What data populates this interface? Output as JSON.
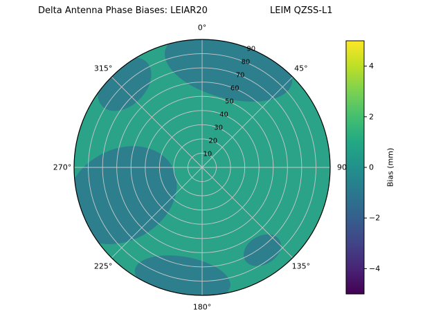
{
  "figure": {
    "title_left": "Delta Antenna Phase Biases: LEIAR20",
    "title_right": "LEIM QZSS-L1"
  },
  "chart_data": {
    "type": "heatmap",
    "projection": "polar",
    "title": "Delta Antenna Phase Biases: LEIAR20",
    "subtitle": "LEIM QZSS-L1",
    "theta_zero": "top",
    "theta_direction": "clockwise",
    "radial_max": 90,
    "radial_label_angle_deg": 22.5,
    "angular_ticks": [
      {
        "deg": 0,
        "label": "0°"
      },
      {
        "deg": 45,
        "label": "45°"
      },
      {
        "deg": 90,
        "label": "90"
      },
      {
        "deg": 135,
        "label": "135°"
      },
      {
        "deg": 180,
        "label": "180°"
      },
      {
        "deg": 225,
        "label": "225°"
      },
      {
        "deg": 270,
        "label": "270°"
      },
      {
        "deg": 315,
        "label": "315°"
      }
    ],
    "radial_ticks": [
      {
        "r": 10,
        "label": "10"
      },
      {
        "r": 20,
        "label": "20"
      },
      {
        "r": 30,
        "label": "30"
      },
      {
        "r": 40,
        "label": "40"
      },
      {
        "r": 50,
        "label": "50"
      },
      {
        "r": 60,
        "label": "60"
      },
      {
        "r": 70,
        "label": "70"
      },
      {
        "r": 80,
        "label": "80"
      },
      {
        "r": 90,
        "label": "90"
      }
    ],
    "base_bias_mm": 0.5,
    "base_color": "#2aa388",
    "region_color": "#2d7f8e",
    "regions": [
      {
        "name": "north-dark",
        "bias_mm": -0.5,
        "theta_deg": 14.7,
        "r": 73,
        "a": 46,
        "b": 22,
        "rot": 15
      },
      {
        "name": "northwest-dark",
        "bias_mm": -0.5,
        "theta_deg": 317,
        "r": 80,
        "a": 22,
        "b": 15,
        "rot": -45
      },
      {
        "name": "west-dark",
        "bias_mm": -0.5,
        "theta_deg": 251,
        "r": 60,
        "a": 41,
        "b": 32,
        "rot": -30
      },
      {
        "name": "south-dark",
        "bias_mm": -0.5,
        "theta_deg": 190,
        "r": 79,
        "a": 34,
        "b": 15,
        "rot": 10
      },
      {
        "name": "southeast-dark",
        "bias_mm": -0.5,
        "theta_deg": 144,
        "r": 72,
        "a": 14,
        "b": 10,
        "rot": -30
      }
    ],
    "colormap": "viridis",
    "colormap_stops": [
      [
        "0%",
        "#440154"
      ],
      [
        "10%",
        "#482475"
      ],
      [
        "20%",
        "#414487"
      ],
      [
        "30%",
        "#355f8d"
      ],
      [
        "40%",
        "#2a788e"
      ],
      [
        "50%",
        "#21918c"
      ],
      [
        "60%",
        "#22a884"
      ],
      [
        "70%",
        "#44bf70"
      ],
      [
        "80%",
        "#7ad151"
      ],
      [
        "90%",
        "#bddf26"
      ],
      [
        "100%",
        "#fde725"
      ]
    ],
    "colorbar": {
      "label": "Bias (mm)",
      "vmin": -5,
      "vmax": 5,
      "ticks": [
        {
          "v": -4,
          "label": "−4"
        },
        {
          "v": -2,
          "label": "−2"
        },
        {
          "v": 0,
          "label": "0"
        },
        {
          "v": 2,
          "label": "2"
        },
        {
          "v": 4,
          "label": "4"
        }
      ]
    }
  }
}
